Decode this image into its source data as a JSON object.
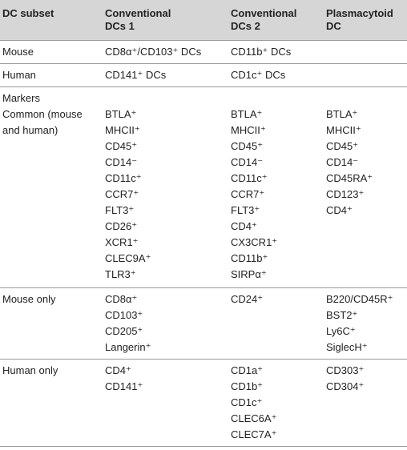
{
  "headers": [
    "DC subset",
    "Conventional\nDCs 1",
    "Conventional\nDCs 2",
    "Plasmacytoid\nDC"
  ],
  "rows": {
    "mouse": {
      "label": "Mouse",
      "cdc1": "CD8α⁺/CD103⁺ DCs",
      "cdc2": "CD11b⁺ DCs",
      "pdc": ""
    },
    "human": {
      "label": "Human",
      "cdc1": "CD141⁺ DCs",
      "cdc2": "CD1c⁺ DCs",
      "pdc": ""
    },
    "markers": {
      "label_lines": [
        "Markers",
        "Common (mouse",
        "and human)"
      ],
      "cdc1": [
        "BTLA⁺",
        "MHCII⁺",
        "CD45⁺",
        "CD14⁻",
        "CD11c⁺",
        "CCR7⁺",
        "FLT3⁺",
        "CD26⁺",
        "XCR1⁺",
        "CLEC9A⁺",
        "TLR3⁺"
      ],
      "cdc2": [
        "BTLA⁺",
        "MHCII⁺",
        "CD45⁺",
        "CD14⁻",
        "CD11c⁺",
        "CCR7⁺",
        "FLT3⁺",
        "CD4⁺",
        "CX3CR1⁺",
        "CD11b⁺",
        "SIRPα⁺"
      ],
      "pdc": [
        "BTLA⁺",
        "MHCII⁺",
        "CD45⁺",
        "CD14⁻",
        "CD45RA⁺",
        "CD123⁺",
        "CD4⁺"
      ]
    },
    "mouse_only": {
      "label": "Mouse only",
      "cdc1": [
        "CD8α⁺",
        "CD103⁺",
        "CD205⁺",
        "Langerin⁺"
      ],
      "cdc2": [
        "CD24⁺"
      ],
      "pdc": [
        "B220/CD45R⁺",
        "BST2⁺",
        "Ly6C⁺",
        "SiglecH⁺"
      ]
    },
    "human_only": {
      "label": "Human only",
      "cdc1": [
        "CD4⁺",
        "CD141⁺"
      ],
      "cdc2": [
        "CD1a⁺",
        "CD1b⁺",
        "CD1c⁺",
        "CLEC6A⁺",
        "CLEC7A⁺"
      ],
      "pdc": [
        "CD303⁺",
        "CD304⁺"
      ]
    }
  }
}
